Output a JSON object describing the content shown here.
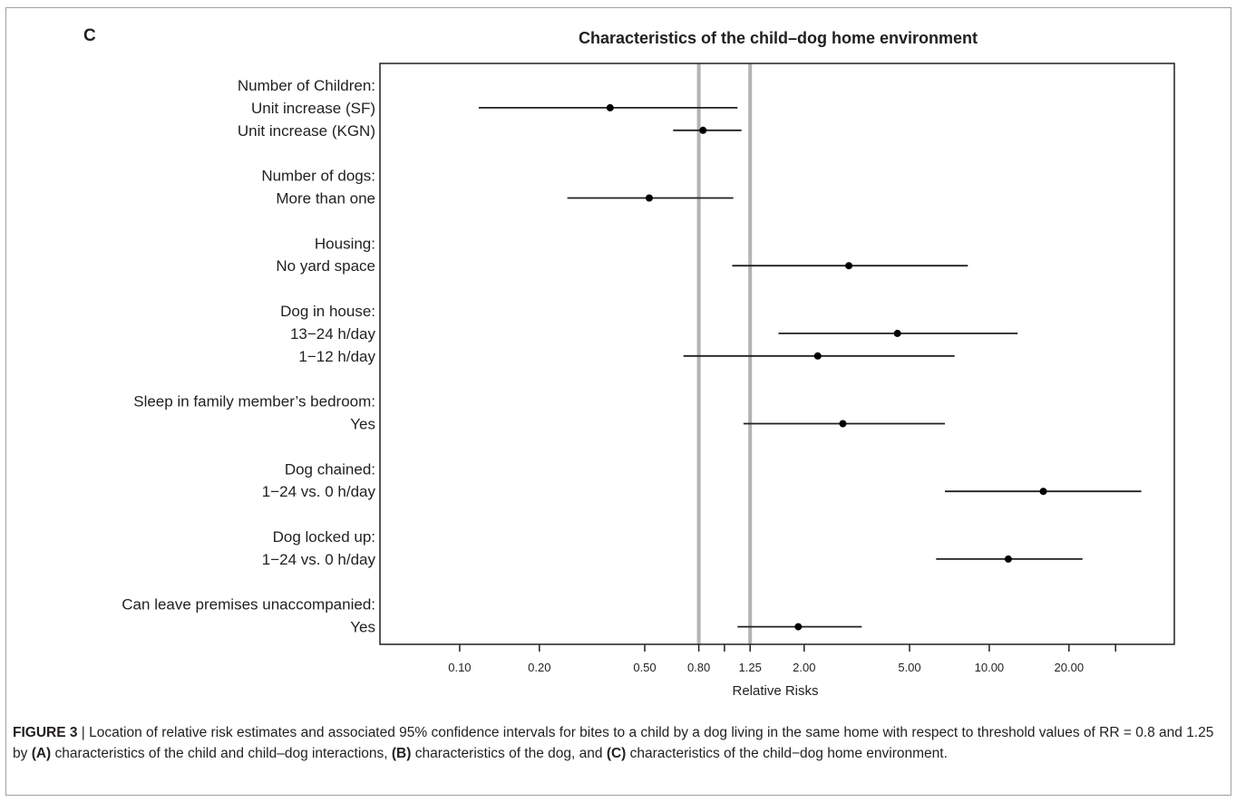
{
  "panel_letter": "C",
  "caption": {
    "figure_label": "FIGURE 3",
    "separator": " | ",
    "text_1": "Location of relative risk estimates and associated 95% confidence intervals for bites to a child by a dog living in the same home with respect to threshold values of RR = 0.8 and 1.25 by ",
    "bold_a": "(A)",
    "text_2": " characteristics of the child and child–dog interactions, ",
    "bold_b": "(B)",
    "text_3": " characteristics of the dog, and ",
    "bold_c": "(C)",
    "text_4": " characteristics of the child−dog home environment."
  },
  "colors": {
    "point": "#000000",
    "ci_line": "#231f20",
    "reference_line": "#b3b3b3",
    "axis": "#231f20"
  },
  "chart_data": {
    "type": "scatter",
    "subtype": "forest-plot",
    "title": "Characteristics of the child–dog home environment",
    "xlabel": "Relative Risks",
    "ylabel": "",
    "x_scale": "log",
    "xlim": [
      0.05,
      50
    ],
    "x_ticks": [
      0.1,
      0.2,
      0.5,
      0.8,
      1.0,
      1.25,
      2.0,
      5.0,
      10.0,
      20.0,
      30.0
    ],
    "x_tick_labels": [
      "0.10",
      "0.20",
      "0.50",
      "0.80",
      "",
      "1.25",
      "2.00",
      "5.00",
      "10.00",
      "20.00",
      ""
    ],
    "reference_lines": [
      0.8,
      1.25
    ],
    "grid": false,
    "legend": "none",
    "rows": [
      {
        "label": "Number of Children:",
        "header": true
      },
      {
        "label": "Unit increase (SF)",
        "estimate": 0.37,
        "lower": 0.118,
        "upper": 1.12
      },
      {
        "label": "Unit increase (KGN)",
        "estimate": 0.83,
        "lower": 0.64,
        "upper": 1.16
      },
      {
        "label": "",
        "spacer": true
      },
      {
        "label": "Number of dogs:",
        "header": true
      },
      {
        "label": "More than one",
        "estimate": 0.52,
        "lower": 0.255,
        "upper": 1.08
      },
      {
        "label": "",
        "spacer": true
      },
      {
        "label": "Housing:",
        "header": true
      },
      {
        "label": "No yard space",
        "estimate": 2.95,
        "lower": 1.07,
        "upper": 8.3
      },
      {
        "label": "",
        "spacer": true
      },
      {
        "label": "Dog in house:",
        "header": true
      },
      {
        "label": "13−24 h/day",
        "estimate": 4.5,
        "lower": 1.6,
        "upper": 12.8
      },
      {
        "label": "1−12 h/day",
        "estimate": 2.25,
        "lower": 0.7,
        "upper": 7.4
      },
      {
        "label": "",
        "spacer": true
      },
      {
        "label": "Sleep in family member’s bedroom:",
        "header": true
      },
      {
        "label": "Yes",
        "estimate": 2.8,
        "lower": 1.18,
        "upper": 6.8
      },
      {
        "label": "",
        "spacer": true
      },
      {
        "label": "Dog chained:",
        "header": true
      },
      {
        "label": "1−24 vs. 0 h/day",
        "estimate": 16.0,
        "lower": 6.8,
        "upper": 37.5
      },
      {
        "label": "",
        "spacer": true
      },
      {
        "label": "Dog locked up:",
        "header": true
      },
      {
        "label": "1−24 vs. 0 h/day",
        "estimate": 11.8,
        "lower": 6.3,
        "upper": 22.5
      },
      {
        "label": "",
        "spacer": true
      },
      {
        "label": "Can leave premises unaccompanied:",
        "header": true
      },
      {
        "label": "Yes",
        "estimate": 1.9,
        "lower": 1.12,
        "upper": 3.3
      }
    ]
  }
}
